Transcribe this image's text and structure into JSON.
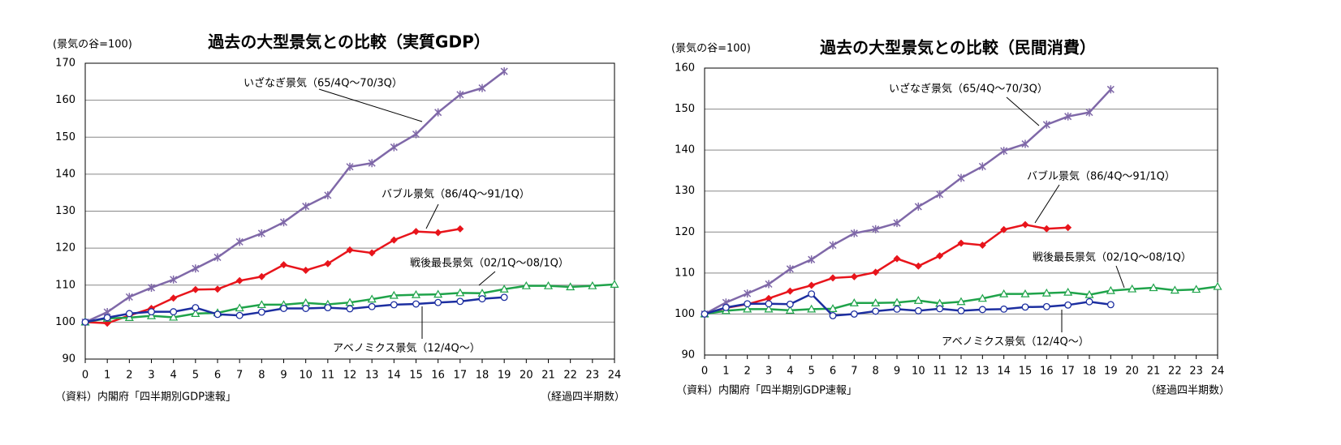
{
  "chart_data": [
    {
      "type": "line",
      "title": "過去の大型景気との比較（実質GDP）",
      "y_unit_label": "(景気の谷=100)",
      "source": "（資料）内閣府「四半期別GDP速報」",
      "xlabel": "（経過四半期数）",
      "x": [
        0,
        1,
        2,
        3,
        4,
        5,
        6,
        7,
        8,
        9,
        10,
        11,
        12,
        13,
        14,
        15,
        16,
        17,
        18,
        19,
        20,
        21,
        22,
        23,
        24
      ],
      "xlim": [
        0,
        24
      ],
      "xticks": [
        0,
        1,
        2,
        3,
        4,
        5,
        6,
        7,
        8,
        9,
        10,
        11,
        12,
        13,
        14,
        15,
        16,
        17,
        18,
        19,
        20,
        21,
        22,
        23,
        24
      ],
      "ylim": [
        90,
        170
      ],
      "yticks": [
        90,
        100,
        110,
        120,
        130,
        140,
        150,
        160,
        170
      ],
      "grid": true,
      "series": [
        {
          "name": "いざなぎ景気（65/4Q～70/3Q）",
          "color": "#7f68a8",
          "marker": "x",
          "values": [
            100,
            102.7,
            106.8,
            109.3,
            111.5,
            114.5,
            117.5,
            121.7,
            124,
            127,
            131.3,
            134.3,
            142,
            143,
            147.3,
            150.8,
            156.7,
            161.5,
            163.3,
            167.8,
            null,
            null,
            null,
            null,
            null
          ]
        },
        {
          "name": "バブル景気（86/4Q～91/1Q）",
          "color": "#e8141b",
          "marker": "diamond",
          "values": [
            100,
            99.7,
            101.8,
            103.7,
            106.5,
            108.8,
            108.9,
            111.2,
            112.3,
            115.5,
            114,
            115.8,
            119.5,
            118.7,
            122.2,
            124.5,
            124.2,
            125.2,
            null,
            null,
            null,
            null,
            null,
            null,
            null
          ]
        },
        {
          "name": "戦後最長景気（02/1Q～08/1Q）",
          "color": "#1fa34a",
          "marker": "triangle",
          "values": [
            100,
            101,
            101.2,
            101.7,
            101.3,
            102.3,
            102.5,
            103.8,
            104.7,
            104.7,
            105.2,
            104.8,
            105.3,
            106.2,
            107.2,
            107.4,
            107.5,
            107.9,
            107.8,
            108.9,
            109.8,
            109.8,
            109.5,
            109.8,
            110.2
          ]
        },
        {
          "name": "アベノミクス景気（12/4Q～）",
          "color": "#1c2ea0",
          "marker": "circle",
          "values": [
            100,
            101.2,
            102.3,
            102.8,
            102.8,
            103.9,
            102.1,
            101.8,
            102.7,
            103.7,
            103.7,
            103.9,
            103.6,
            104.2,
            104.7,
            104.9,
            105.3,
            105.6,
            106.3,
            106.7,
            null,
            null,
            null,
            null,
            null
          ]
        }
      ]
    },
    {
      "type": "line",
      "title": "過去の大型景気との比較（民間消費）",
      "y_unit_label": "(景気の谷=100)",
      "source": "（資料）内閣府「四半期別GDP速報」",
      "xlabel": "（経過四半期数）",
      "x": [
        0,
        1,
        2,
        3,
        4,
        5,
        6,
        7,
        8,
        9,
        10,
        11,
        12,
        13,
        14,
        15,
        16,
        17,
        18,
        19,
        20,
        21,
        22,
        23,
        24
      ],
      "xlim": [
        0,
        24
      ],
      "xticks": [
        0,
        1,
        2,
        3,
        4,
        5,
        6,
        7,
        8,
        9,
        10,
        11,
        12,
        13,
        14,
        15,
        16,
        17,
        18,
        19,
        20,
        21,
        22,
        23,
        24
      ],
      "ylim": [
        90,
        160
      ],
      "yticks": [
        90,
        100,
        110,
        120,
        130,
        140,
        150,
        160
      ],
      "grid": true,
      "series": [
        {
          "name": "いざなぎ景気（65/4Q～70/3Q）",
          "color": "#7f68a8",
          "marker": "x",
          "values": [
            100,
            102.8,
            105,
            107.3,
            111,
            113.3,
            116.8,
            119.7,
            120.7,
            122.2,
            126.2,
            129.2,
            133.2,
            136,
            139.8,
            141.5,
            146.2,
            148.2,
            149.2,
            154.8,
            null,
            null,
            null,
            null,
            null
          ]
        },
        {
          "name": "バブル景気（86/4Q～91/1Q）",
          "color": "#e8141b",
          "marker": "diamond",
          "values": [
            100,
            101.5,
            102.4,
            103.8,
            105.6,
            107,
            108.8,
            109.1,
            110.2,
            113.5,
            111.7,
            114.2,
            117.3,
            116.8,
            120.6,
            121.8,
            120.8,
            121.1,
            null,
            null,
            null,
            null,
            null,
            null,
            null
          ]
        },
        {
          "name": "戦後最長景気（02/1Q～08/1Q）",
          "color": "#1fa34a",
          "marker": "triangle",
          "values": [
            100,
            100.8,
            101.2,
            101.2,
            100.9,
            101.2,
            101.3,
            102.7,
            102.7,
            102.8,
            103.3,
            102.6,
            103,
            103.8,
            104.9,
            104.9,
            105.1,
            105.3,
            104.7,
            105.7,
            106.1,
            106.4,
            105.8,
            106,
            106.7
          ]
        },
        {
          "name": "アベノミクス景気（12/4Q～）",
          "color": "#1c2ea0",
          "marker": "circle",
          "values": [
            100,
            101.6,
            102.5,
            102.5,
            102.4,
            104.9,
            99.6,
            100,
            100.7,
            101.2,
            100.8,
            101.3,
            100.8,
            101.1,
            101.2,
            101.7,
            101.8,
            102.2,
            103,
            102.3,
            null,
            null,
            null,
            null,
            null
          ]
        }
      ]
    }
  ]
}
